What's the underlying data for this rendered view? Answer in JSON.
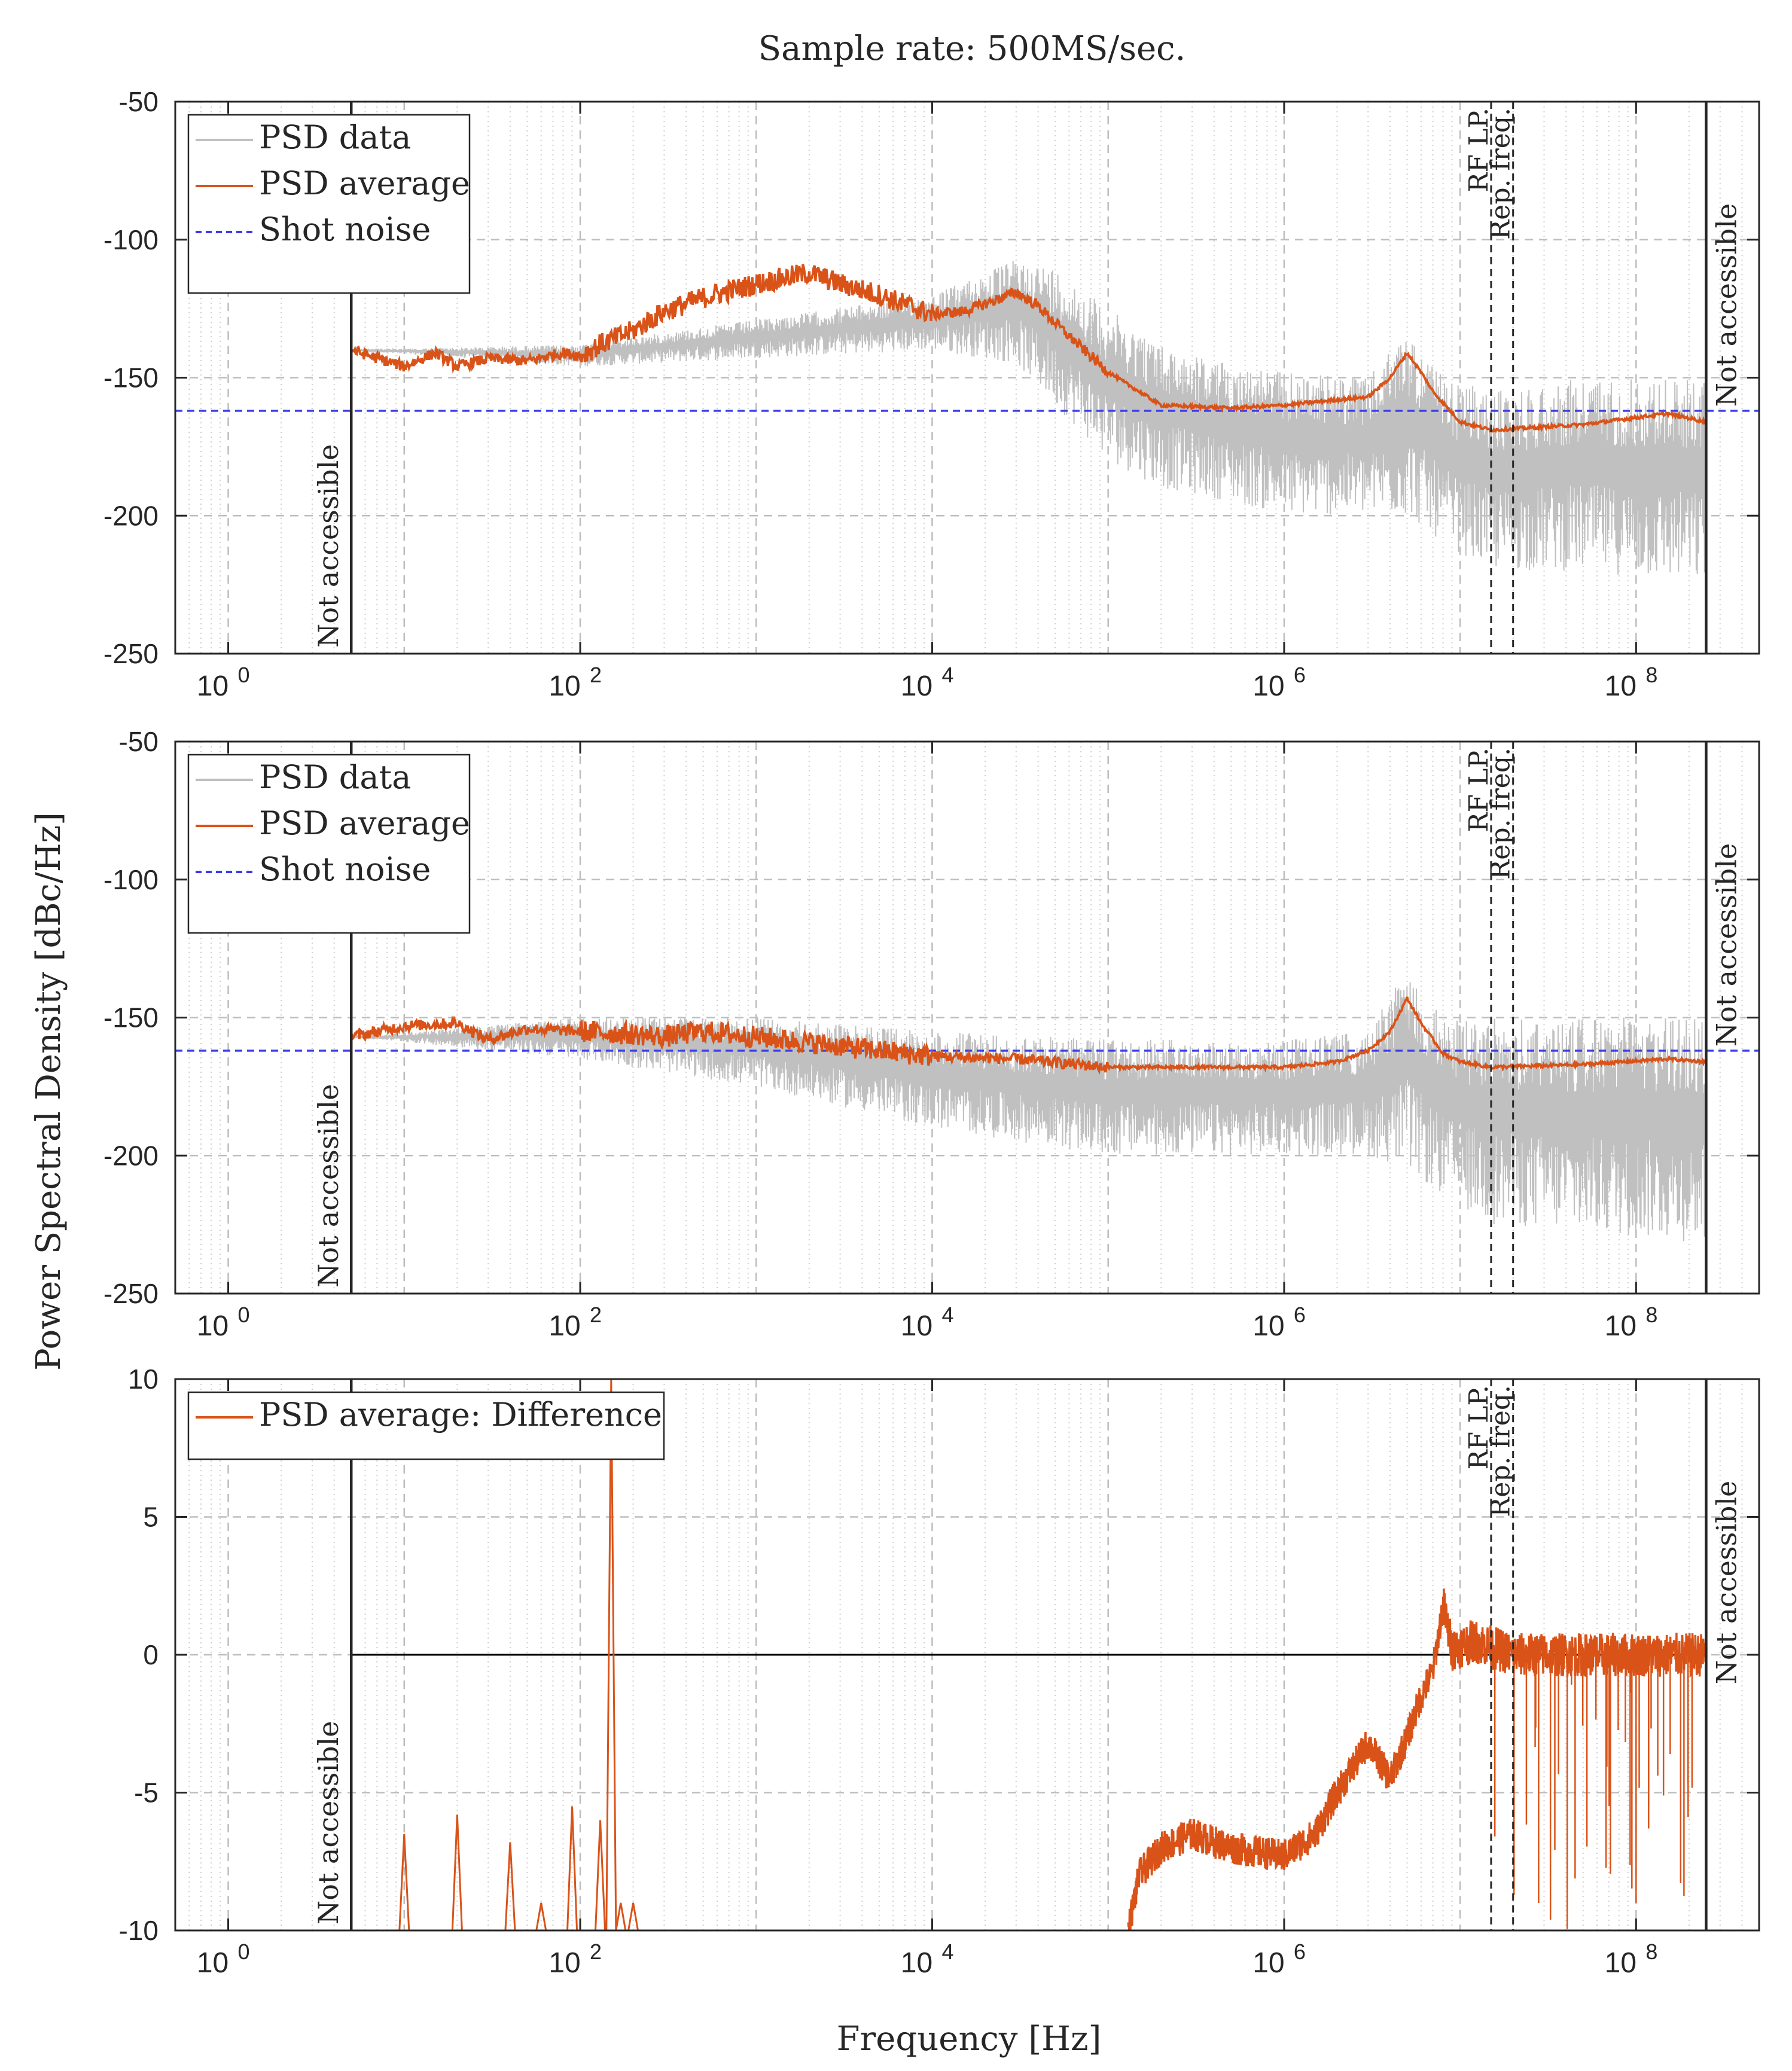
{
  "chart_data": {
    "type": "line",
    "title": "Sample rate: 500MS/sec.",
    "shared_ylabel": "Power Spectral Density [dBc/Hz]",
    "xlabel": "Frequency [Hz]",
    "xscale": "log",
    "xlim": [
      0.5,
      500000000
    ],
    "x_tick_values": [
      1,
      100,
      10000,
      1000000,
      100000000
    ],
    "x_tick_labels": [
      {
        "base": "10",
        "exp": "0"
      },
      {
        "base": "10",
        "exp": "2"
      },
      {
        "base": "10",
        "exp": "4"
      },
      {
        "base": "10",
        "exp": "6"
      },
      {
        "base": "10",
        "exp": "8"
      }
    ],
    "markers": {
      "not_accessible_low_hz": 5,
      "not_accessible_high_hz": 250000000,
      "rf_lp_hz": 15000000,
      "rep_freq_hz": 20000000,
      "not_accessible_label": "Not accessible",
      "rf_lp_label": "RF LP.",
      "rep_freq_label": "Rep. freq."
    },
    "panels": [
      {
        "id": "top",
        "ylim": [
          -250,
          -50
        ],
        "yticks": [
          "-50",
          "-100",
          "-150",
          "-200",
          "-250"
        ],
        "legend": [
          "PSD data",
          "PSD average",
          "Shot noise"
        ],
        "shot_noise_db": -162,
        "psd_average": [
          [
            5,
            -140
          ],
          [
            10,
            -146
          ],
          [
            15,
            -141
          ],
          [
            20,
            -146
          ],
          [
            30,
            -143
          ],
          [
            50,
            -144
          ],
          [
            80,
            -141
          ],
          [
            100,
            -142
          ],
          [
            130,
            -138
          ],
          [
            200,
            -133
          ],
          [
            300,
            -126
          ],
          [
            500,
            -121
          ],
          [
            1000,
            -116
          ],
          [
            2000,
            -112
          ],
          [
            3000,
            -116
          ],
          [
            5000,
            -120
          ],
          [
            10000,
            -127
          ],
          [
            15000,
            -126
          ],
          [
            25000,
            -121
          ],
          [
            30000,
            -119
          ],
          [
            40000,
            -124
          ],
          [
            60000,
            -135
          ],
          [
            100000,
            -148
          ],
          [
            200000,
            -160
          ],
          [
            500000,
            -161
          ],
          [
            1000000,
            -160
          ],
          [
            2000000,
            -158
          ],
          [
            3000000,
            -157
          ],
          [
            4000000,
            -150
          ],
          [
            5000000,
            -141
          ],
          [
            6000000,
            -148
          ],
          [
            7000000,
            -155
          ],
          [
            10000000,
            -166
          ],
          [
            15000000,
            -169
          ],
          [
            50000000,
            -167
          ],
          [
            150000000,
            -163
          ],
          [
            250000000,
            -166
          ]
        ],
        "psd_data_envelope": [
          [
            5,
            -140,
            -140
          ],
          [
            100,
            -138,
            -146
          ],
          [
            10000,
            -120,
            -140
          ],
          [
            30000,
            -107,
            -145
          ],
          [
            50000,
            -110,
            -160
          ],
          [
            100000,
            -125,
            -180
          ],
          [
            200000,
            -138,
            -190
          ],
          [
            500000,
            -145,
            -195
          ],
          [
            1000000,
            -148,
            -200
          ],
          [
            3000000,
            -150,
            -200
          ],
          [
            5000000,
            -133,
            -200
          ],
          [
            8000000,
            -150,
            -210
          ],
          [
            15000000,
            -155,
            -220
          ],
          [
            50000000,
            -150,
            -220
          ],
          [
            250000000,
            -150,
            -225
          ]
        ]
      },
      {
        "id": "middle",
        "ylim": [
          -250,
          -50
        ],
        "yticks": [
          "-50",
          "-100",
          "-150",
          "-200",
          "-250"
        ],
        "legend": [
          "PSD data",
          "PSD average",
          "Shot noise"
        ],
        "shot_noise_db": -162,
        "psd_average": [
          [
            5,
            -157
          ],
          [
            10,
            -153
          ],
          [
            20,
            -152
          ],
          [
            30,
            -158
          ],
          [
            50,
            -154
          ],
          [
            100,
            -155
          ],
          [
            200,
            -156
          ],
          [
            300,
            -157
          ],
          [
            500,
            -155
          ],
          [
            1000,
            -157
          ],
          [
            2000,
            -159
          ],
          [
            5000,
            -162
          ],
          [
            10000,
            -164
          ],
          [
            30000,
            -165
          ],
          [
            100000,
            -168
          ],
          [
            1000000,
            -168
          ],
          [
            2000000,
            -166
          ],
          [
            3000000,
            -162
          ],
          [
            4000000,
            -155
          ],
          [
            5000000,
            -143
          ],
          [
            6000000,
            -152
          ],
          [
            8000000,
            -163
          ],
          [
            10000000,
            -166
          ],
          [
            15000000,
            -168
          ],
          [
            50000000,
            -167
          ],
          [
            150000000,
            -165
          ],
          [
            250000000,
            -166
          ]
        ],
        "psd_data_envelope": [
          [
            5,
            -157,
            -157
          ],
          [
            100,
            -150,
            -165
          ],
          [
            1000,
            -150,
            -175
          ],
          [
            10000,
            -155,
            -190
          ],
          [
            100000,
            -158,
            -200
          ],
          [
            1000000,
            -158,
            -200
          ],
          [
            3000000,
            -155,
            -200
          ],
          [
            5000000,
            -132,
            -205
          ],
          [
            8000000,
            -150,
            -215
          ],
          [
            15000000,
            -150,
            -225
          ],
          [
            50000000,
            -150,
            -228
          ],
          [
            250000000,
            -150,
            -232
          ]
        ]
      },
      {
        "id": "bottom",
        "ylim": [
          -10,
          10
        ],
        "yticks": [
          "10",
          "5",
          "0",
          "-5",
          "-10"
        ],
        "legend": [
          "PSD average: Difference"
        ],
        "zero_line": 0,
        "difference": [
          [
            130000,
            -10
          ],
          [
            150000,
            -8
          ],
          [
            200000,
            -7
          ],
          [
            300000,
            -6.5
          ],
          [
            500000,
            -7
          ],
          [
            1000000,
            -7.3
          ],
          [
            1500000,
            -6.5
          ],
          [
            2000000,
            -5
          ],
          [
            3000000,
            -3.2
          ],
          [
            4000000,
            -4.5
          ],
          [
            5000000,
            -3
          ],
          [
            6000000,
            -1.5
          ],
          [
            7000000,
            -0.6
          ],
          [
            8000000,
            1.8
          ],
          [
            9000000,
            0.2
          ],
          [
            12000000,
            0.5
          ],
          [
            20000000,
            0
          ],
          [
            250000000,
            0
          ]
        ],
        "low_freq_spikes": [
          [
            7,
            -10
          ],
          [
            10,
            -6.5
          ],
          [
            20,
            -5.8
          ],
          [
            40,
            -6.8
          ],
          [
            60,
            -9
          ],
          [
            90,
            -5.5
          ],
          [
            130,
            -6
          ],
          [
            150,
            10
          ],
          [
            170,
            -9
          ],
          [
            200,
            -9
          ]
        ]
      }
    ]
  }
}
